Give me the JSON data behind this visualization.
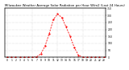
{
  "title": "Milwaukee Weather Average Solar Radiation per Hour W/m2 (Last 24 Hours)",
  "hours": [
    0,
    1,
    2,
    3,
    4,
    5,
    6,
    7,
    8,
    9,
    10,
    11,
    12,
    13,
    14,
    15,
    16,
    17,
    18,
    19,
    20,
    21,
    22,
    23
  ],
  "values": [
    0,
    0,
    0,
    0,
    0,
    0,
    0,
    4,
    25,
    80,
    170,
    270,
    310,
    285,
    220,
    150,
    70,
    15,
    1,
    0,
    0,
    0,
    0,
    0
  ],
  "line_color": "#ff0000",
  "bg_color": "#ffffff",
  "grid_color": "#bbbbbb",
  "ylim": [
    0,
    350
  ],
  "yticks": [
    0,
    50,
    100,
    150,
    200,
    250,
    300,
    350
  ],
  "title_fontsize": 2.8,
  "tick_fontsize": 2.2,
  "linewidth": 0.6,
  "markersize": 1.2
}
